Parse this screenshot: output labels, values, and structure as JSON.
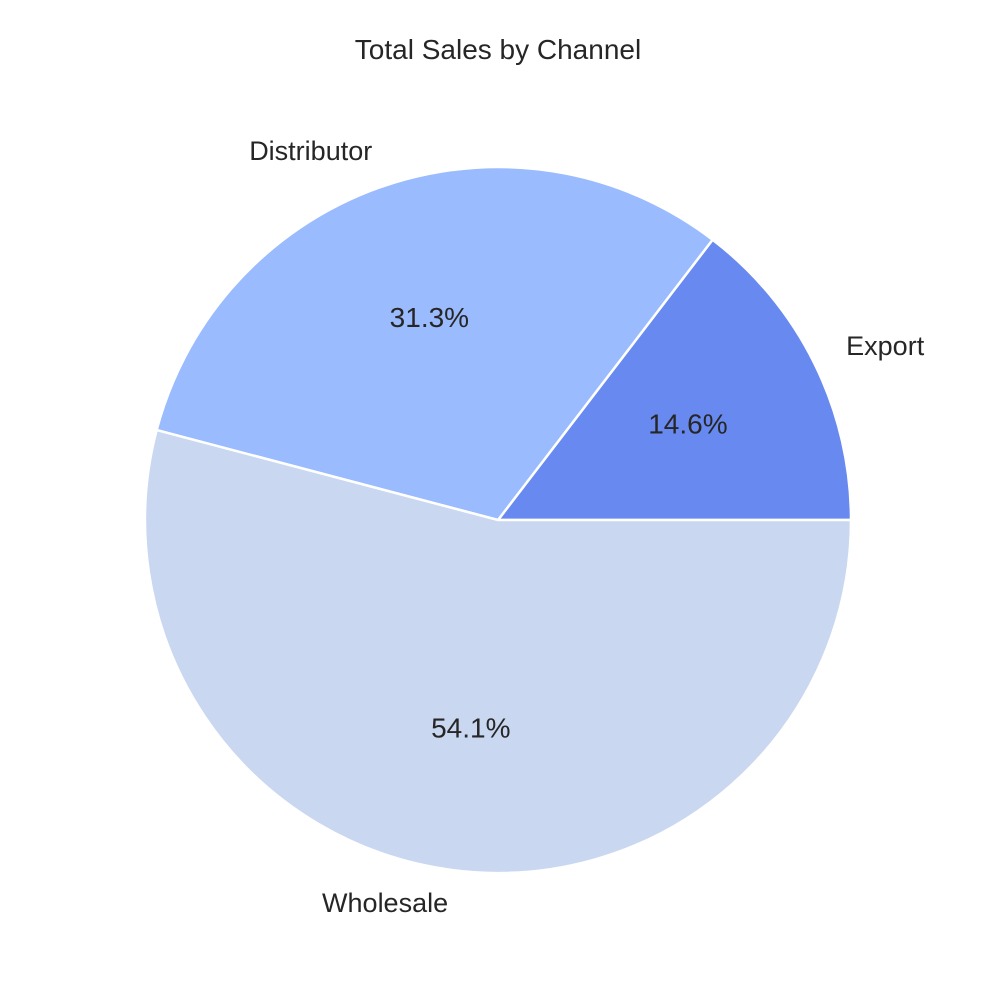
{
  "chart_data": {
    "type": "pie",
    "title": "Total Sales by Channel",
    "start_angle_deg": 0,
    "direction": "counterclockwise",
    "slices": [
      {
        "label": "Export",
        "value": 14.6,
        "pct_label": "14.6%",
        "color": "#6889ef"
      },
      {
        "label": "Distributor",
        "value": 31.3,
        "pct_label": "31.3%",
        "color": "#9abbfd"
      },
      {
        "label": "Wholesale",
        "value": 54.1,
        "pct_label": "54.1%",
        "color": "#c9d7f1"
      }
    ],
    "legend": "none"
  }
}
